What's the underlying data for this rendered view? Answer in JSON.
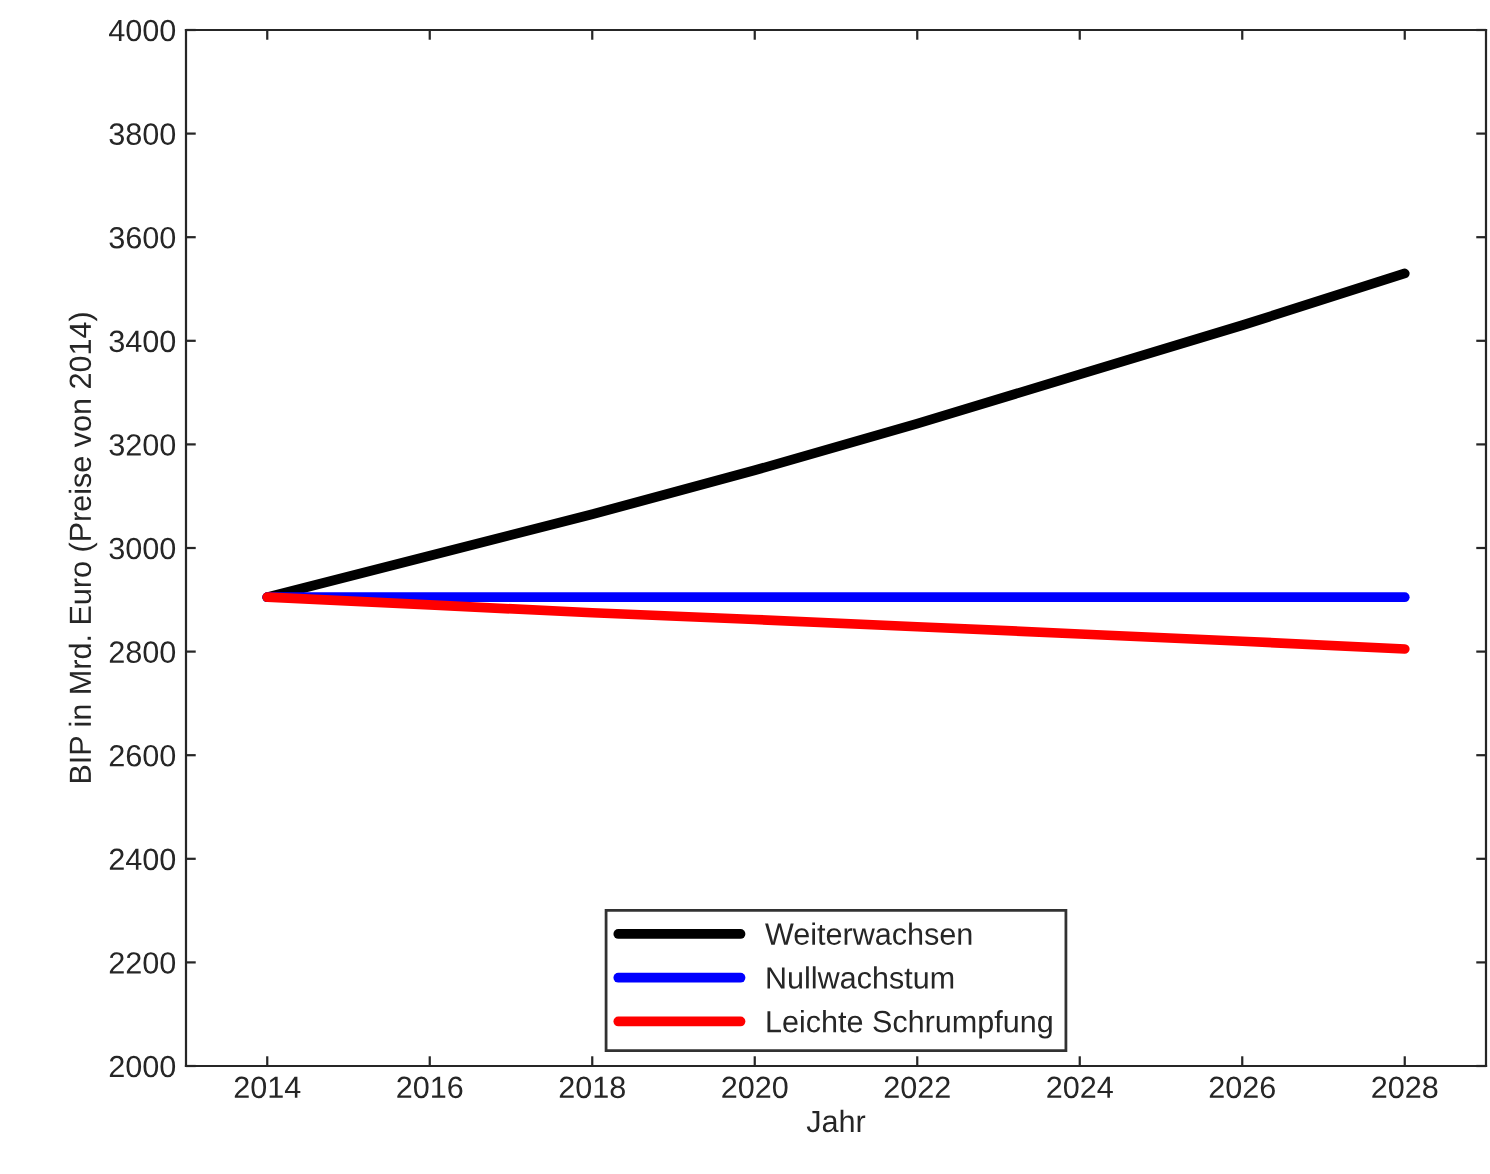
{
  "chart_data": {
    "type": "line",
    "xlabel": "Jahr",
    "ylabel": "BIP in Mrd. Euro (Preise von 2014)",
    "x": [
      2014,
      2016,
      2018,
      2020,
      2022,
      2024,
      2026,
      2028
    ],
    "series": [
      {
        "name": "Weiterwachsen",
        "color": "#000000",
        "values": [
          2905,
          2985,
          3065,
          3150,
          3240,
          3335,
          3430,
          3530
        ]
      },
      {
        "name": "Nullwachstum",
        "color": "#0000ff",
        "values": [
          2905,
          2905,
          2905,
          2905,
          2905,
          2905,
          2905,
          2905
        ]
      },
      {
        "name": "Leichte Schrumpfung",
        "color": "#ff0000",
        "values": [
          2905,
          2890,
          2875,
          2862,
          2848,
          2834,
          2820,
          2805
        ]
      }
    ],
    "xlim": [
      2013,
      2029
    ],
    "xticks": [
      2014,
      2016,
      2018,
      2020,
      2022,
      2024,
      2026,
      2028
    ],
    "ylim": [
      2000,
      4000
    ],
    "yticks": [
      2000,
      2200,
      2400,
      2600,
      2800,
      3000,
      3200,
      3400,
      3600,
      3800,
      4000
    ],
    "grid": false,
    "legend": "bottom",
    "line_style": "solid",
    "marker": "none"
  }
}
